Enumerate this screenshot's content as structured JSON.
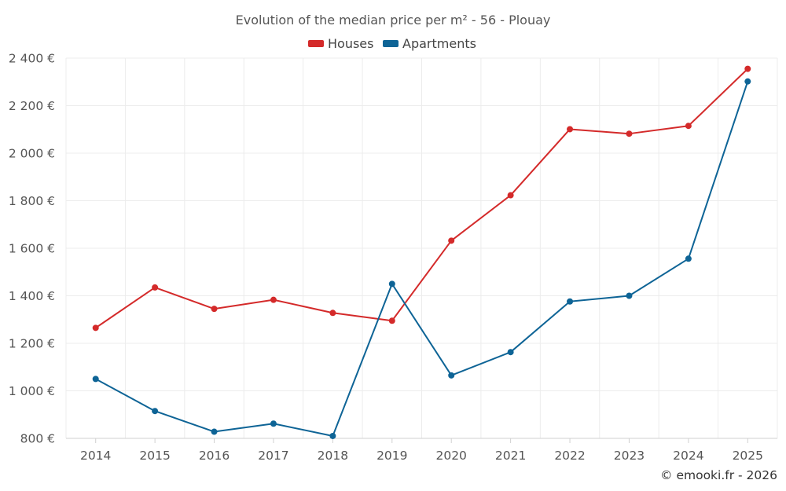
{
  "chart_data": {
    "type": "line",
    "title": "Evolution of the median price per m² - 56 - Plouay",
    "categories": [
      "2014",
      "2015",
      "2016",
      "2017",
      "2018",
      "2019",
      "2020",
      "2021",
      "2022",
      "2023",
      "2024",
      "2025"
    ],
    "series": [
      {
        "name": "Houses",
        "color": "#d42a2a",
        "values": [
          1265,
          1435,
          1345,
          1383,
          1328,
          1295,
          1632,
          1823,
          2101,
          2082,
          2115,
          2355
        ]
      },
      {
        "name": "Apartments",
        "color": "#0e6496",
        "values": [
          1050,
          915,
          828,
          862,
          810,
          1450,
          1065,
          1163,
          1376,
          1400,
          1556,
          2302
        ]
      }
    ],
    "ylim": [
      800,
      2400
    ],
    "yticks": [
      800,
      1000,
      1200,
      1400,
      1600,
      1800,
      2000,
      2200,
      2400
    ],
    "ytick_labels": [
      "800 €",
      "1 000 €",
      "1 200 €",
      "1 400 €",
      "1 600 €",
      "1 800 €",
      "2 000 €",
      "2 200 €",
      "2 400 €"
    ],
    "xlabel": "",
    "ylabel": "",
    "grid": true,
    "legend_position": "top-center"
  },
  "credit": "© emooki.fr - 2026"
}
